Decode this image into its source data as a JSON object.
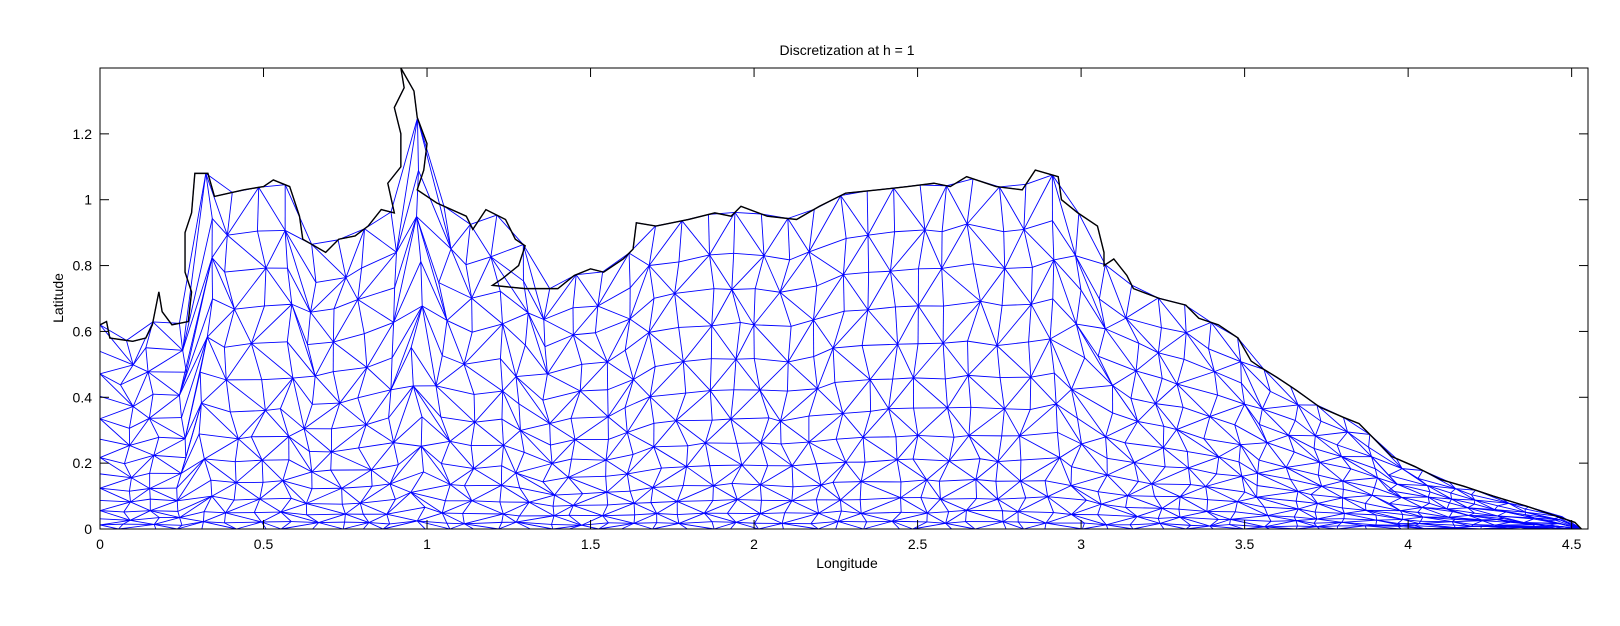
{
  "chart_data": {
    "type": "triangular-mesh",
    "title": "Discretization at h = 1",
    "xlabel": "Longitude",
    "ylabel": "Latitude",
    "xlim": [
      0,
      4.55
    ],
    "ylim": [
      0,
      1.4
    ],
    "x_ticks": [
      0,
      0.5,
      1,
      1.5,
      2,
      2.5,
      3,
      3.5,
      4,
      4.5
    ],
    "x_tick_labels": [
      "0",
      "0.5",
      "1",
      "1.5",
      "2",
      "2.5",
      "3",
      "3.5",
      "4",
      "4.5"
    ],
    "y_ticks": [
      0,
      0.2,
      0.4,
      0.6,
      0.8,
      1.0,
      1.2
    ],
    "y_tick_labels": [
      "0",
      "0.2",
      "0.4",
      "0.6",
      "0.8",
      "1",
      "1.2"
    ],
    "grid": false,
    "mesh_color": "#0000ff",
    "boundary_color": "#000000",
    "coastline": [
      [
        0.0,
        0.62
      ],
      [
        0.02,
        0.63
      ],
      [
        0.03,
        0.58
      ],
      [
        0.1,
        0.57
      ],
      [
        0.14,
        0.58
      ],
      [
        0.16,
        0.62
      ],
      [
        0.18,
        0.72
      ],
      [
        0.19,
        0.66
      ],
      [
        0.22,
        0.62
      ],
      [
        0.27,
        0.63
      ],
      [
        0.28,
        0.72
      ],
      [
        0.26,
        0.78
      ],
      [
        0.26,
        0.9
      ],
      [
        0.28,
        0.96
      ],
      [
        0.29,
        1.08
      ],
      [
        0.33,
        1.08
      ],
      [
        0.35,
        1.01
      ],
      [
        0.44,
        1.03
      ],
      [
        0.5,
        1.04
      ],
      [
        0.53,
        1.06
      ],
      [
        0.58,
        1.04
      ],
      [
        0.61,
        0.95
      ],
      [
        0.62,
        0.88
      ],
      [
        0.69,
        0.84
      ],
      [
        0.73,
        0.88
      ],
      [
        0.78,
        0.89
      ],
      [
        0.82,
        0.92
      ],
      [
        0.86,
        0.97
      ],
      [
        0.9,
        0.96
      ],
      [
        0.88,
        1.05
      ],
      [
        0.92,
        1.1
      ],
      [
        0.92,
        1.2
      ],
      [
        0.9,
        1.28
      ],
      [
        0.93,
        1.34
      ],
      [
        0.92,
        1.4
      ],
      [
        0.96,
        1.33
      ],
      [
        0.97,
        1.25
      ],
      [
        1.0,
        1.17
      ],
      [
        0.99,
        1.09
      ],
      [
        0.97,
        1.03
      ],
      [
        1.03,
        0.99
      ],
      [
        1.12,
        0.95
      ],
      [
        1.14,
        0.91
      ],
      [
        1.18,
        0.97
      ],
      [
        1.24,
        0.94
      ],
      [
        1.27,
        0.88
      ],
      [
        1.3,
        0.86
      ],
      [
        1.28,
        0.8
      ],
      [
        1.23,
        0.76
      ],
      [
        1.2,
        0.74
      ],
      [
        1.3,
        0.73
      ],
      [
        1.4,
        0.73
      ],
      [
        1.45,
        0.77
      ],
      [
        1.5,
        0.79
      ],
      [
        1.54,
        0.78
      ],
      [
        1.6,
        0.82
      ],
      [
        1.63,
        0.85
      ],
      [
        1.64,
        0.93
      ],
      [
        1.7,
        0.92
      ],
      [
        1.8,
        0.94
      ],
      [
        1.88,
        0.96
      ],
      [
        1.93,
        0.95
      ],
      [
        1.96,
        0.98
      ],
      [
        2.04,
        0.95
      ],
      [
        2.13,
        0.94
      ],
      [
        2.2,
        0.98
      ],
      [
        2.28,
        1.02
      ],
      [
        2.38,
        1.03
      ],
      [
        2.47,
        1.04
      ],
      [
        2.55,
        1.05
      ],
      [
        2.6,
        1.04
      ],
      [
        2.65,
        1.07
      ],
      [
        2.74,
        1.04
      ],
      [
        2.82,
        1.03
      ],
      [
        2.86,
        1.09
      ],
      [
        2.93,
        1.07
      ],
      [
        2.94,
        1.0
      ],
      [
        2.99,
        0.96
      ],
      [
        3.05,
        0.92
      ],
      [
        3.07,
        0.84
      ],
      [
        3.07,
        0.8
      ],
      [
        3.1,
        0.82
      ],
      [
        3.14,
        0.77
      ],
      [
        3.16,
        0.73
      ],
      [
        3.24,
        0.7
      ],
      [
        3.32,
        0.68
      ],
      [
        3.36,
        0.64
      ],
      [
        3.42,
        0.62
      ],
      [
        3.48,
        0.58
      ],
      [
        3.52,
        0.51
      ],
      [
        3.55,
        0.49
      ],
      [
        3.6,
        0.46
      ],
      [
        3.66,
        0.42
      ],
      [
        3.73,
        0.37
      ],
      [
        3.8,
        0.34
      ],
      [
        3.85,
        0.32
      ],
      [
        3.9,
        0.27
      ],
      [
        3.95,
        0.22
      ],
      [
        4.02,
        0.19
      ],
      [
        4.1,
        0.15
      ],
      [
        4.17,
        0.13
      ],
      [
        4.26,
        0.1
      ],
      [
        4.36,
        0.07
      ],
      [
        4.45,
        0.04
      ],
      [
        4.51,
        0.02
      ],
      [
        4.53,
        0.0
      ]
    ]
  }
}
